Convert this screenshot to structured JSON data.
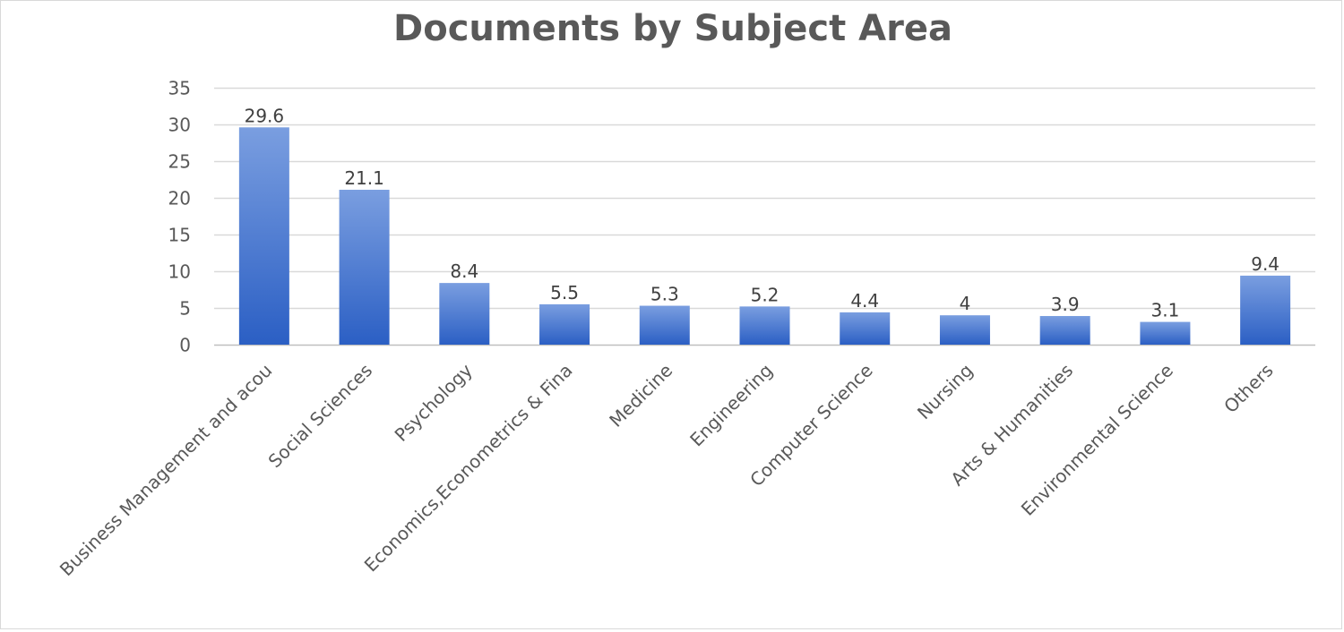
{
  "chart_data": {
    "type": "bar",
    "title": "Documents by Subject Area",
    "xlabel": "",
    "ylabel": "",
    "categories": [
      "Business Management and acou",
      "Social Sciences",
      "Psychology",
      "Economics,Econometrics & Fina",
      "Medicine",
      "Engineering",
      "Computer Science",
      "Nursing",
      "Arts & Humanities",
      "Environmental Science",
      "Others"
    ],
    "values": [
      29.6,
      21.1,
      8.4,
      5.5,
      5.3,
      5.2,
      4.4,
      4,
      3.9,
      3.1,
      9.4
    ],
    "value_labels": [
      "29.6",
      "21.1",
      "8.4",
      "5.5",
      "5.3",
      "5.2",
      "4.4",
      "4",
      "3.9",
      "3.1",
      "9.4"
    ],
    "ylim": [
      0,
      35
    ],
    "yticks": [
      0,
      5,
      10,
      15,
      20,
      25,
      30,
      35
    ],
    "grid": true,
    "legend": "none",
    "colors": {
      "bar_top": "#7a9ee0",
      "bar_bottom": "#2b5fc4",
      "grid": "#d9d9d9",
      "axis": "#bfbfbf",
      "text": "#595959"
    }
  }
}
